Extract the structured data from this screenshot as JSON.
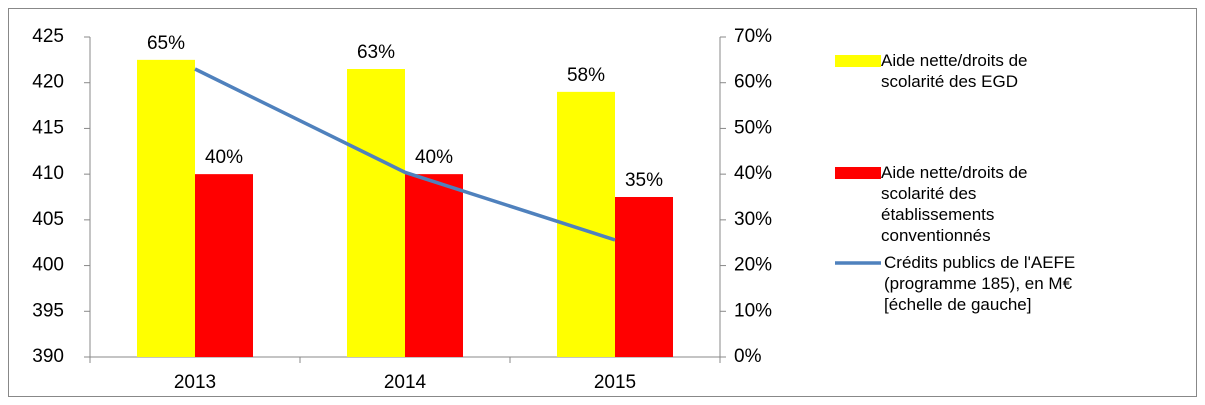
{
  "chart_data": {
    "type": "bar-line",
    "categories": [
      "2013",
      "2014",
      "2015"
    ],
    "series": [
      {
        "name": "Aide nette/droits de scolarité des EGD",
        "color": "#ffff00",
        "kind": "bar",
        "axis": "y2",
        "values": [
          65,
          63,
          58
        ],
        "value_labels": [
          "65%",
          "63%",
          "58%"
        ]
      },
      {
        "name": "Aide nette/droits de scolarité des établissements conventionnés",
        "color": "#ff0000",
        "kind": "bar",
        "axis": "y2",
        "values": [
          40,
          40,
          35
        ],
        "value_labels": [
          "40%",
          "40%",
          "35%"
        ]
      },
      {
        "name": "Crédits publics de l'AEFE (programme 185),  en M€ [échelle de gauche]",
        "color": "#4f81bd",
        "kind": "line",
        "values": [
          421.5,
          410.2,
          402.8
        ]
      }
    ],
    "ylim": [
      390,
      425
    ],
    "yticks": [
      390,
      395,
      400,
      405,
      410,
      415,
      420,
      425
    ],
    "y2lim": [
      0,
      70
    ],
    "y2ticks": [
      {
        "value": 0,
        "label": "0%"
      },
      {
        "value": 10,
        "label": "10%"
      },
      {
        "value": 20,
        "label": "20%"
      },
      {
        "value": 30,
        "label": "30%"
      },
      {
        "value": 40,
        "label": "40%"
      },
      {
        "value": 50,
        "label": "50%"
      },
      {
        "value": 60,
        "label": "60%"
      },
      {
        "value": 70,
        "label": "70%"
      }
    ],
    "legend": "right"
  }
}
